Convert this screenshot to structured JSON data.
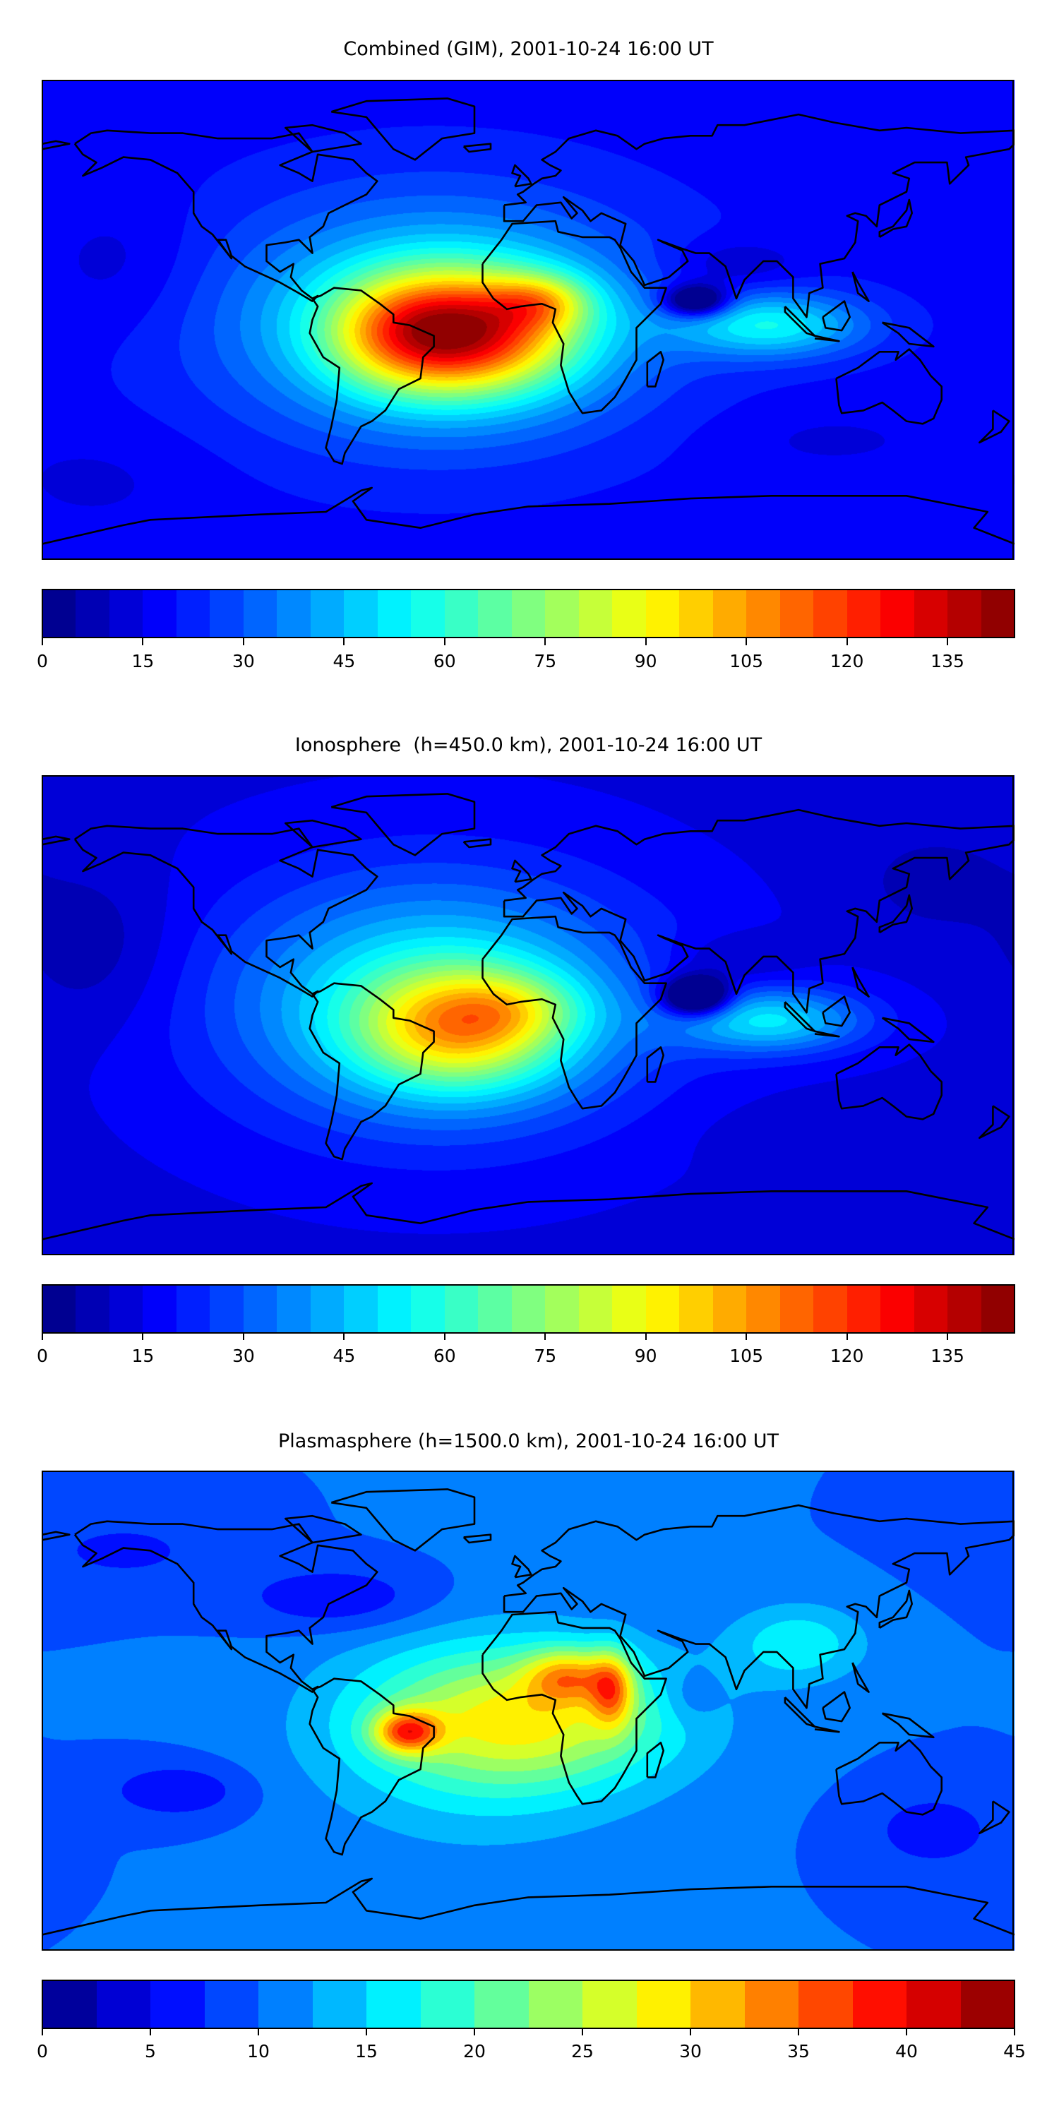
{
  "chart_data": [
    {
      "type": "heatmap",
      "subtype": "filled-contour world map",
      "title": "Combined (GIM), 2001-10-24 16:00 UT",
      "colormap": "jet",
      "projection": "plate carree, lon -180..180, lat -90..90",
      "colorbar": {
        "min": 0,
        "max": 145,
        "step": 5,
        "ticks": [
          "0",
          "15",
          "30",
          "45",
          "60",
          "75",
          "90",
          "105",
          "120",
          "135"
        ]
      },
      "features": {
        "background_value": 20,
        "peak_value": 130,
        "peak_region": "tropical South America to Gulf of Guinea",
        "minimum_region": "equatorial Indian Ocean east of Africa"
      }
    },
    {
      "type": "heatmap",
      "subtype": "filled-contour world map",
      "title": "Ionosphere  (h=450.0 km), 2001-10-24 16:00 UT",
      "colormap": "jet",
      "projection": "plate carree, lon -180..180, lat -90..90",
      "colorbar": {
        "min": 0,
        "max": 145,
        "step": 5,
        "ticks": [
          "0",
          "15",
          "30",
          "45",
          "60",
          "75",
          "90",
          "105",
          "120",
          "135"
        ]
      },
      "features": {
        "background_value": 15,
        "peak_value": 102,
        "peak_region": "tropical Atlantic / northern Brazil",
        "minimum_region": "equatorial Indian Ocean east of Africa"
      }
    },
    {
      "type": "heatmap",
      "subtype": "filled-contour world map",
      "title": "Plasmasphere (h=1500.0 km), 2001-10-24 16:00 UT",
      "colormap": "jet",
      "projection": "plate carree, lon -180..180, lat -90..90",
      "colorbar": {
        "min": 0,
        "max": 45,
        "step": 2.5,
        "ticks": [
          "0",
          "5",
          "10",
          "15",
          "20",
          "25",
          "30",
          "35",
          "40",
          "45"
        ]
      },
      "features": {
        "background_value": 10,
        "peak_value": 33,
        "peak_region": "Brazil and north/central Africa",
        "minimum_region": "eastern North America"
      }
    }
  ]
}
